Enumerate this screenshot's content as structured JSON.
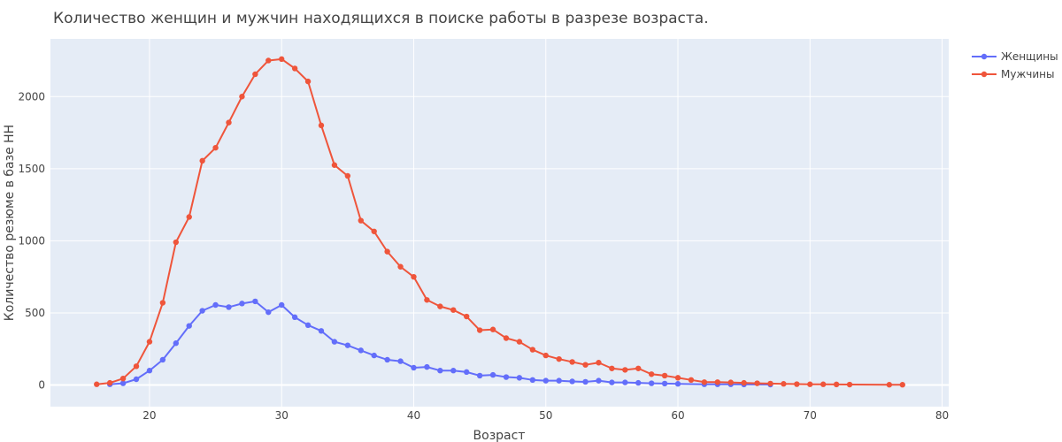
{
  "chart_data": {
    "type": "line",
    "title": "Количество женщин и мужчин находящихся в поиске работы в разрезе возраста.",
    "xlabel": "Возраст",
    "ylabel": "Количество резюме в базе HH",
    "xlim": [
      12.5,
      80.5
    ],
    "ylim": [
      -150,
      2400
    ],
    "x_ticks": [
      20,
      30,
      40,
      50,
      60,
      70,
      80
    ],
    "y_ticks": [
      0,
      500,
      1000,
      1500,
      2000
    ],
    "grid": true,
    "legend_position": "top-right",
    "plot_background": "#e5ecf6",
    "series": [
      {
        "name": "Женщины",
        "color": "#636efa",
        "x": [
          17,
          18,
          19,
          20,
          21,
          22,
          23,
          24,
          25,
          26,
          27,
          28,
          29,
          30,
          31,
          32,
          33,
          34,
          35,
          36,
          37,
          38,
          39,
          40,
          41,
          42,
          43,
          44,
          45,
          46,
          47,
          48,
          49,
          50,
          51,
          52,
          53,
          54,
          55,
          56,
          57,
          58,
          59,
          60,
          62,
          63,
          64,
          65,
          67
        ],
        "y": [
          5,
          12,
          40,
          100,
          175,
          290,
          410,
          515,
          555,
          540,
          565,
          580,
          505,
          555,
          470,
          415,
          375,
          300,
          275,
          240,
          205,
          175,
          165,
          120,
          125,
          100,
          100,
          90,
          65,
          70,
          55,
          50,
          35,
          30,
          30,
          25,
          22,
          30,
          18,
          18,
          15,
          12,
          10,
          8,
          5,
          5,
          5,
          4,
          3
        ]
      },
      {
        "name": "Мужчины",
        "color": "#ef553b",
        "x": [
          16,
          17,
          18,
          19,
          20,
          21,
          22,
          23,
          24,
          25,
          26,
          27,
          28,
          29,
          30,
          31,
          32,
          33,
          34,
          35,
          36,
          37,
          38,
          39,
          40,
          41,
          42,
          43,
          44,
          45,
          46,
          47,
          48,
          49,
          50,
          51,
          52,
          53,
          54,
          55,
          56,
          57,
          58,
          59,
          60,
          61,
          62,
          63,
          64,
          65,
          66,
          67,
          68,
          69,
          70,
          71,
          72,
          73,
          76,
          77
        ],
        "y": [
          5,
          15,
          45,
          130,
          300,
          570,
          990,
          1165,
          1555,
          1645,
          1820,
          2000,
          2155,
          2250,
          2260,
          2195,
          2105,
          1800,
          1525,
          1450,
          1140,
          1065,
          925,
          820,
          750,
          590,
          545,
          520,
          475,
          380,
          385,
          325,
          300,
          245,
          205,
          180,
          160,
          140,
          155,
          115,
          105,
          115,
          75,
          65,
          50,
          35,
          20,
          20,
          18,
          15,
          12,
          10,
          8,
          6,
          5,
          5,
          4,
          3,
          2,
          2
        ]
      }
    ]
  }
}
